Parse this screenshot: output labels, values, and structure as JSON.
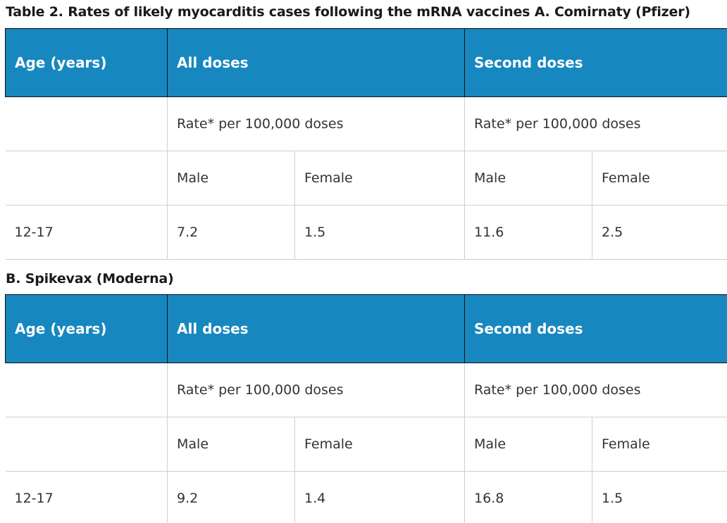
{
  "caption_a": "Table 2. Rates of likely myocarditis cases following the mRNA vaccines  A. Comirnaty (Pfizer)",
  "caption_b": "B. Spikevax (Moderna)",
  "headers": {
    "age": "Age (years)",
    "all_doses": "All doses",
    "second_doses": "Second doses"
  },
  "rate_label": "Rate* per 100,000 doses",
  "sex": {
    "male": "Male",
    "female": "Female"
  },
  "pfizer": {
    "age_group": "12-17",
    "all_male": "7.2",
    "all_female": "1.5",
    "second_male": "11.6",
    "second_female": "2.5"
  },
  "moderna": {
    "age_group": "12-17",
    "all_male": "9.2",
    "all_female": "1.4",
    "second_male": "16.8",
    "second_female": "1.5"
  }
}
